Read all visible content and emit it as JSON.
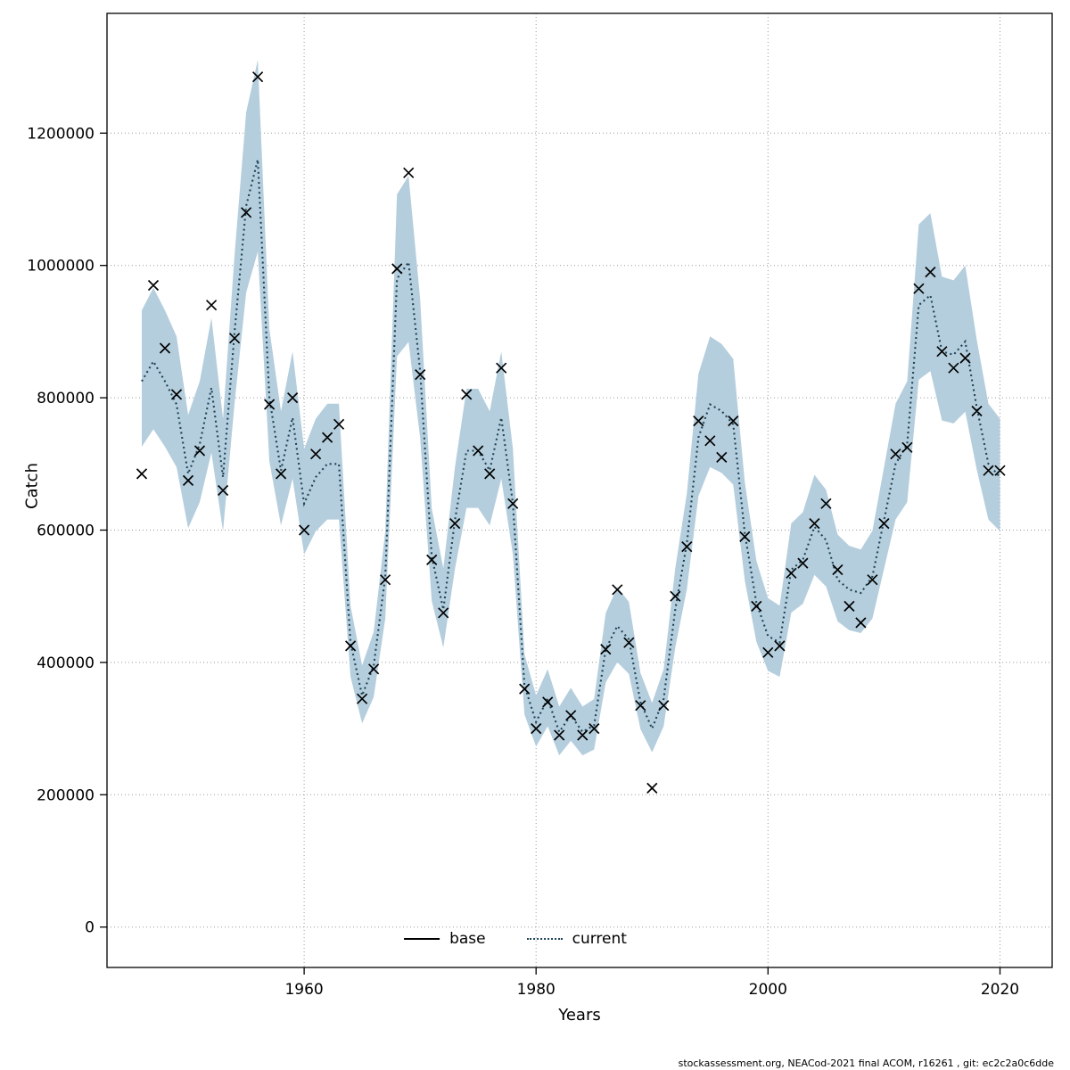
{
  "chart_data": {
    "type": "line",
    "title": "",
    "xlabel": "Years",
    "ylabel": "Catch",
    "footer": "stockassessment.org, NEACod-2021 final ACOM, r16261 , git: ec2c2a0c6dde",
    "xlim": [
      1943,
      2024.5
    ],
    "ylim": [
      -61000,
      1381000
    ],
    "xticks": [
      1960,
      1980,
      2000,
      2020
    ],
    "xtick_labels": [
      "1960",
      "1980",
      "2000",
      "2020"
    ],
    "yticks": [
      0,
      200000,
      400000,
      600000,
      800000,
      1000000,
      1200000
    ],
    "ytick_labels": [
      "0",
      "200000",
      "400000",
      "600000",
      "800000",
      "1000000",
      "1200000"
    ],
    "grid": true,
    "legend": [
      {
        "label": "base",
        "style": "solid",
        "color": "#000000"
      },
      {
        "label": "current",
        "style": "dotted",
        "color": "#1d4356"
      }
    ],
    "band_fraction": {
      "lower": 0.88,
      "upper": 1.13
    },
    "years": [
      1946,
      1947,
      1948,
      1949,
      1950,
      1951,
      1952,
      1953,
      1954,
      1955,
      1956,
      1957,
      1958,
      1959,
      1960,
      1961,
      1962,
      1963,
      1964,
      1965,
      1966,
      1967,
      1968,
      1969,
      1970,
      1971,
      1972,
      1973,
      1974,
      1975,
      1976,
      1977,
      1978,
      1979,
      1980,
      1981,
      1982,
      1983,
      1984,
      1985,
      1986,
      1987,
      1988,
      1989,
      1990,
      1991,
      1992,
      1993,
      1994,
      1995,
      1996,
      1997,
      1998,
      1999,
      2000,
      2001,
      2002,
      2003,
      2004,
      2005,
      2006,
      2007,
      2008,
      2009,
      2010,
      2011,
      2012,
      2013,
      2014,
      2015,
      2016,
      2017,
      2018,
      2019,
      2020
    ],
    "series": [
      {
        "name": "observed_catch",
        "marker": "x",
        "values": [
          685000,
          970000,
          875000,
          805000,
          675000,
          720000,
          940000,
          660000,
          890000,
          1080000,
          1285000,
          790000,
          685000,
          800000,
          600000,
          715000,
          740000,
          760000,
          425000,
          345000,
          390000,
          525000,
          995000,
          1140000,
          835000,
          555000,
          475000,
          610000,
          805000,
          720000,
          685000,
          845000,
          640000,
          360000,
          300000,
          340000,
          290000,
          320000,
          290000,
          300000,
          420000,
          510000,
          430000,
          335000,
          210000,
          335000,
          500000,
          575000,
          765000,
          735000,
          710000,
          765000,
          590000,
          485000,
          415000,
          425000,
          535000,
          550000,
          610000,
          640000,
          540000,
          485000,
          460000,
          525000,
          610000,
          715000,
          725000,
          965000,
          990000,
          870000,
          845000,
          860000,
          780000,
          690000,
          690000
        ]
      },
      {
        "name": "current_fit",
        "line": "dotted",
        "values": [
          825000,
          855000,
          825000,
          790000,
          685000,
          730000,
          815000,
          680000,
          900000,
          1090000,
          1160000,
          800000,
          690000,
          770000,
          640000,
          680000,
          700000,
          700000,
          430000,
          350000,
          395000,
          530000,
          980000,
          1005000,
          840000,
          560000,
          480000,
          615000,
          720000,
          720000,
          690000,
          770000,
          640000,
          365000,
          310000,
          345000,
          295000,
          320000,
          295000,
          305000,
          420000,
          455000,
          435000,
          340000,
          300000,
          345000,
          480000,
          580000,
          740000,
          790000,
          780000,
          760000,
          595000,
          490000,
          440000,
          430000,
          540000,
          555000,
          605000,
          585000,
          525000,
          510000,
          505000,
          530000,
          615000,
          700000,
          730000,
          940000,
          955000,
          870000,
          865000,
          885000,
          785000,
          700000,
          680000
        ]
      }
    ],
    "colors": {
      "band": "#b5cedd",
      "current": "#1d4356",
      "marker": "#000000",
      "grid": "#999999",
      "border": "#000000"
    }
  }
}
